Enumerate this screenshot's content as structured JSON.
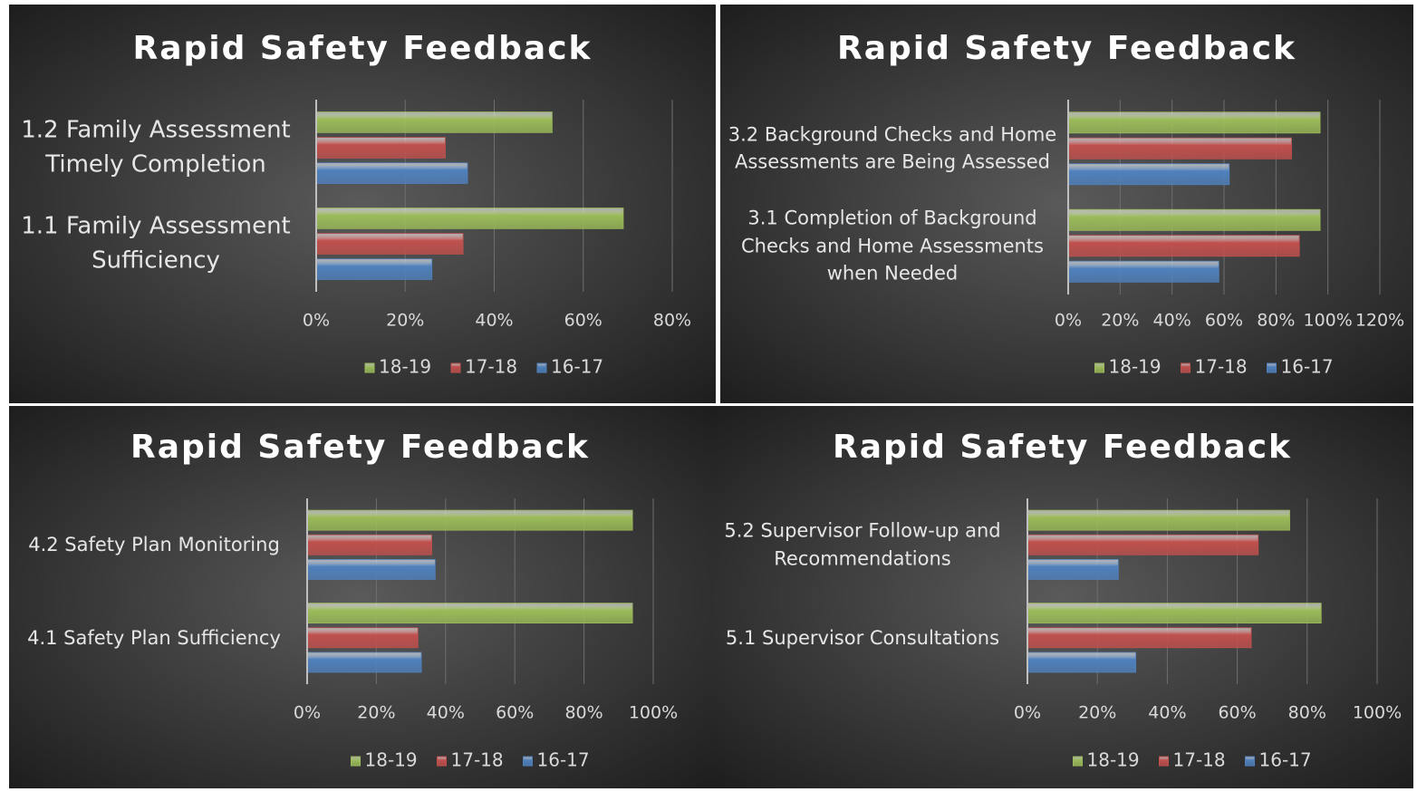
{
  "chart_data": [
    {
      "type": "bar",
      "orientation": "horizontal",
      "title": "Rapid Safety Feedback",
      "categories": [
        "1.2 Family Assessment Timely Completion",
        "1.1 Family Assessment Sufficiency"
      ],
      "series": [
        {
          "name": "18-19",
          "color": "#9bbb59",
          "values": [
            53,
            69
          ]
        },
        {
          "name": "17-18",
          "color": "#c0504d",
          "values": [
            29,
            33
          ]
        },
        {
          "name": "16-17",
          "color": "#4f81bd",
          "values": [
            34,
            26
          ]
        }
      ],
      "xlim": [
        0,
        80
      ],
      "xticks": [
        {
          "value": 0,
          "label": "0%"
        },
        {
          "value": 20,
          "label": "20%"
        },
        {
          "value": 40,
          "label": "40%"
        },
        {
          "value": 60,
          "label": "60%"
        },
        {
          "value": 80,
          "label": "80%"
        }
      ],
      "grid": true,
      "legend": "bottom"
    },
    {
      "type": "bar",
      "orientation": "horizontal",
      "title": "Rapid Safety Feedback",
      "categories": [
        "3.2 Background Checks and Home Assessments are Being Assessed",
        "3.1 Completion of Background Checks and Home Assessments when Needed"
      ],
      "series": [
        {
          "name": "18-19",
          "color": "#9bbb59",
          "values": [
            97,
            97
          ]
        },
        {
          "name": "17-18",
          "color": "#c0504d",
          "values": [
            86,
            89
          ]
        },
        {
          "name": "16-17",
          "color": "#4f81bd",
          "values": [
            62,
            58
          ]
        }
      ],
      "xlim": [
        0,
        120
      ],
      "xticks": [
        {
          "value": 0,
          "label": "0%"
        },
        {
          "value": 20,
          "label": "20%"
        },
        {
          "value": 40,
          "label": "40%"
        },
        {
          "value": 60,
          "label": "60%"
        },
        {
          "value": 80,
          "label": "80%"
        },
        {
          "value": 100,
          "label": "100%"
        },
        {
          "value": 120,
          "label": "120%"
        }
      ],
      "grid": true,
      "legend": "bottom"
    },
    {
      "type": "bar",
      "orientation": "horizontal",
      "title": "Rapid Safety Feedback",
      "categories": [
        "4.2 Safety Plan Monitoring",
        "4.1 Safety Plan Sufficiency"
      ],
      "series": [
        {
          "name": "18-19",
          "color": "#9bbb59",
          "values": [
            94,
            94
          ]
        },
        {
          "name": "17-18",
          "color": "#c0504d",
          "values": [
            36,
            32
          ]
        },
        {
          "name": "16-17",
          "color": "#4f81bd",
          "values": [
            37,
            33
          ]
        }
      ],
      "xlim": [
        0,
        100
      ],
      "xticks": [
        {
          "value": 0,
          "label": "0%"
        },
        {
          "value": 20,
          "label": "20%"
        },
        {
          "value": 40,
          "label": "40%"
        },
        {
          "value": 60,
          "label": "60%"
        },
        {
          "value": 80,
          "label": "80%"
        },
        {
          "value": 100,
          "label": "100%"
        }
      ],
      "grid": true,
      "legend": "bottom"
    },
    {
      "type": "bar",
      "orientation": "horizontal",
      "title": "Rapid Safety Feedback",
      "categories": [
        "5.2 Supervisor Follow-up and Recommendations",
        "5.1 Supervisor Consultations"
      ],
      "series": [
        {
          "name": "18-19",
          "color": "#9bbb59",
          "values": [
            75,
            84
          ]
        },
        {
          "name": "17-18",
          "color": "#c0504d",
          "values": [
            66,
            64
          ]
        },
        {
          "name": "16-17",
          "color": "#4f81bd",
          "values": [
            26,
            31
          ]
        }
      ],
      "xlim": [
        0,
        100
      ],
      "xticks": [
        {
          "value": 0,
          "label": "0%"
        },
        {
          "value": 20,
          "label": "20%"
        },
        {
          "value": 40,
          "label": "40%"
        },
        {
          "value": 60,
          "label": "60%"
        },
        {
          "value": 80,
          "label": "80%"
        },
        {
          "value": 100,
          "label": "100%"
        }
      ],
      "grid": true,
      "legend": "bottom"
    }
  ]
}
